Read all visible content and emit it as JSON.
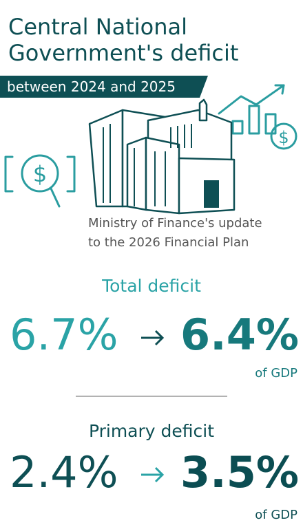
{
  "header": {
    "title_lines": [
      "Central National",
      "Government's deficit"
    ],
    "banner": "between 2024 and 2025"
  },
  "caption_lines": [
    "Ministry of Finance's update",
    "to the 2026 Financial Plan"
  ],
  "sections": [
    {
      "title": "Total deficit",
      "from": "6.7%",
      "to": "6.4%",
      "unit": "of GDP"
    },
    {
      "title": "Primary deficit",
      "from": "2.4%",
      "to": "3.5%",
      "unit": "of GDP"
    }
  ]
}
